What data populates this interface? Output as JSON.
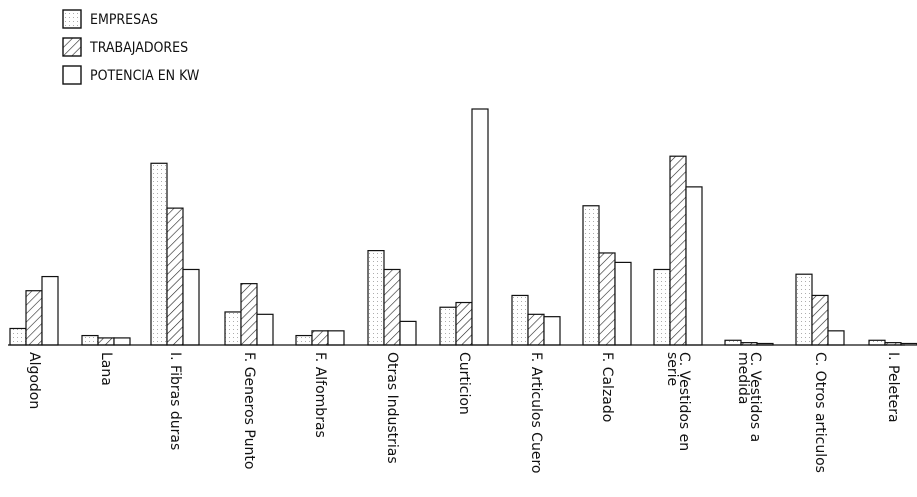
{
  "chart_data": {
    "type": "bar",
    "title": "",
    "xlabel": "",
    "ylabel": "",
    "ylim": [
      0,
      100
    ],
    "grid": false,
    "legend_position": "top-left",
    "categories": [
      [
        "Algodon"
      ],
      [
        "Lana"
      ],
      [
        "I. Fibras duras"
      ],
      [
        "F. Generos Punto"
      ],
      [
        "F. Alfombras"
      ],
      [
        "Otras Industrias"
      ],
      [
        "Curticion"
      ],
      [
        "F. Articulos Cuero"
      ],
      [
        "F. Calzado"
      ],
      [
        "C. Vestidos en",
        "serie"
      ],
      [
        "C. Vestidos a",
        "medida"
      ],
      [
        "C. Otros articulos"
      ],
      [
        "I. Peletera"
      ]
    ],
    "series": [
      {
        "name": "EMPRESAS",
        "pattern": "dotted",
        "values": [
          7,
          4,
          77,
          14,
          4,
          40,
          16,
          21,
          59,
          32,
          2,
          30,
          2
        ]
      },
      {
        "name": "TRABAJADORES",
        "pattern": "hatched",
        "values": [
          23,
          3,
          58,
          26,
          6,
          32,
          18,
          13,
          39,
          80,
          1,
          21,
          1
        ]
      },
      {
        "name": "POTENCIA EN KW",
        "pattern": "plain",
        "values": [
          29,
          3,
          32,
          13,
          6,
          10,
          100,
          12,
          35,
          67,
          0.5,
          6,
          0.5
        ]
      }
    ]
  }
}
